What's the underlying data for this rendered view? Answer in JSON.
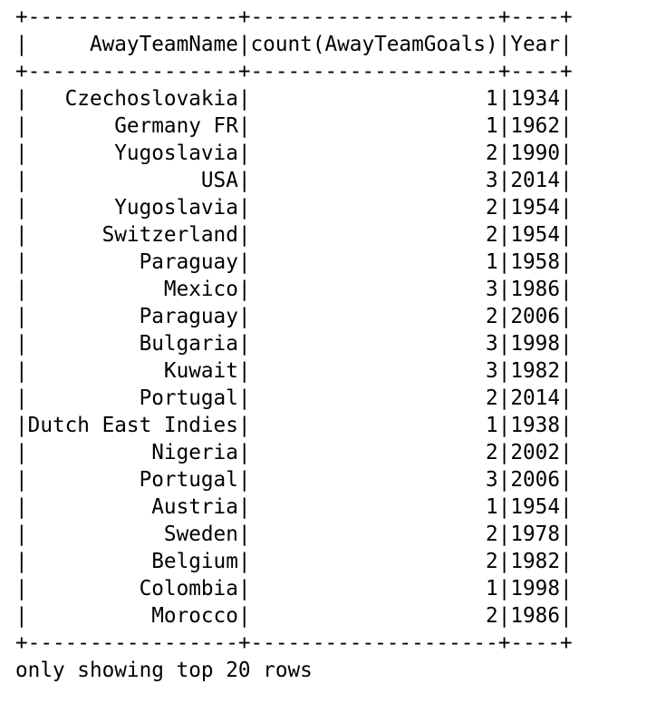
{
  "table": {
    "columns": [
      "AwayTeamName",
      "count(AwayTeamGoals)",
      "Year"
    ],
    "rows": [
      [
        "Czechoslovakia",
        "1",
        "1934"
      ],
      [
        "Germany FR",
        "1",
        "1962"
      ],
      [
        "Yugoslavia",
        "2",
        "1990"
      ],
      [
        "USA",
        "3",
        "2014"
      ],
      [
        "Yugoslavia",
        "2",
        "1954"
      ],
      [
        "Switzerland",
        "2",
        "1954"
      ],
      [
        "Paraguay",
        "1",
        "1958"
      ],
      [
        "Mexico",
        "3",
        "1986"
      ],
      [
        "Paraguay",
        "2",
        "2006"
      ],
      [
        "Bulgaria",
        "3",
        "1998"
      ],
      [
        "Kuwait",
        "3",
        "1982"
      ],
      [
        "Portugal",
        "2",
        "2014"
      ],
      [
        "Dutch East Indies",
        "1",
        "1938"
      ],
      [
        "Nigeria",
        "2",
        "2002"
      ],
      [
        "Portugal",
        "3",
        "2006"
      ],
      [
        "Austria",
        "1",
        "1954"
      ],
      [
        "Sweden",
        "2",
        "1978"
      ],
      [
        "Belgium",
        "2",
        "1982"
      ],
      [
        "Colombia",
        "1",
        "1998"
      ],
      [
        "Morocco",
        "2",
        "1986"
      ]
    ]
  },
  "footer_text": "only showing top 20 rows"
}
